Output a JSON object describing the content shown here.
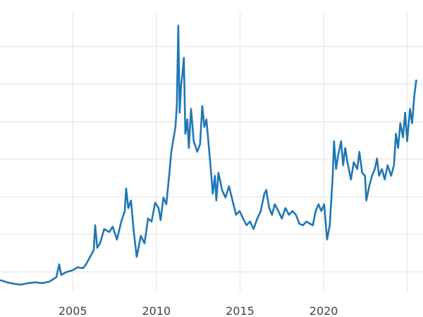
{
  "chart_data": {
    "type": "line",
    "title": "",
    "xlabel": "",
    "ylabel": "",
    "xlim": [
      2000.65,
      2025.6
    ],
    "ylim": [
      1.8,
      39.8
    ],
    "grid": true,
    "x_ticks": [
      2005,
      2010,
      2015,
      2020,
      2025
    ],
    "x_tick_labels": [
      "2005",
      "2010",
      "2015",
      "2020",
      ""
    ],
    "y_gridlines": [
      5,
      10,
      15,
      20,
      25,
      30,
      35
    ],
    "line_color": "#1f77b4",
    "series": [
      {
        "x": [
          2000.65,
          2001.07,
          2001.49,
          2001.91,
          2002.33,
          2002.76,
          2003.18,
          2003.6,
          2004.02,
          2004.19,
          2004.31,
          2004.65,
          2004.99,
          2005.28,
          2005.62,
          2005.79,
          2006.04,
          2006.25,
          2006.34,
          2006.46,
          2006.63,
          2006.88,
          2007.18,
          2007.39,
          2007.64,
          2007.9,
          2008.11,
          2008.19,
          2008.32,
          2008.48,
          2008.65,
          2008.82,
          2009.07,
          2009.29,
          2009.5,
          2009.71,
          2009.92,
          2010.13,
          2010.25,
          2010.42,
          2010.59,
          2010.76,
          2010.89,
          2011.01,
          2011.14,
          2011.22,
          2011.31,
          2011.39,
          2011.48,
          2011.56,
          2011.64,
          2011.73,
          2011.85,
          2011.94,
          2012.07,
          2012.23,
          2012.44,
          2012.61,
          2012.74,
          2012.87,
          2012.99,
          2013.12,
          2013.25,
          2013.37,
          2013.5,
          2013.58,
          2013.71,
          2013.92,
          2014.13,
          2014.34,
          2014.55,
          2014.76,
          2014.97,
          2015.18,
          2015.39,
          2015.6,
          2015.81,
          2016.03,
          2016.24,
          2016.45,
          2016.57,
          2016.74,
          2016.91,
          2017.08,
          2017.29,
          2017.5,
          2017.71,
          2017.92,
          2018.13,
          2018.34,
          2018.55,
          2018.76,
          2018.97,
          2019.18,
          2019.35,
          2019.52,
          2019.69,
          2019.86,
          2020.03,
          2020.2,
          2020.36,
          2020.53,
          2020.62,
          2020.74,
          2020.87,
          2021.04,
          2021.16,
          2021.29,
          2021.42,
          2021.63,
          2021.8,
          2022.01,
          2022.13,
          2022.3,
          2022.47,
          2022.55,
          2022.72,
          2022.89,
          2023.06,
          2023.19,
          2023.31,
          2023.48,
          2023.65,
          2023.82,
          2024.03,
          2024.2,
          2024.32,
          2024.45,
          2024.58,
          2024.74,
          2024.87,
          2024.99,
          2025.16,
          2025.29,
          2025.42,
          2025.54
        ],
        "y": [
          3.9,
          3.6,
          3.4,
          3.3,
          3.5,
          3.6,
          3.5,
          3.7,
          4.3,
          6.0,
          4.6,
          5.0,
          5.2,
          5.6,
          5.5,
          6.0,
          7.0,
          7.9,
          11.2,
          8.2,
          8.8,
          10.7,
          10.3,
          11.0,
          9.3,
          11.7,
          13.1,
          16.1,
          13.5,
          14.5,
          10.3,
          7.0,
          9.8,
          8.8,
          12.1,
          11.7,
          14.2,
          13.5,
          11.9,
          14.9,
          14.0,
          17.8,
          21.0,
          22.6,
          24.3,
          27.1,
          37.8,
          26.2,
          30.0,
          31.4,
          33.5,
          23.4,
          25.3,
          21.5,
          26.7,
          22.4,
          21.0,
          22.0,
          27.1,
          24.3,
          25.3,
          22.0,
          18.7,
          15.4,
          17.8,
          14.5,
          18.2,
          15.9,
          14.9,
          16.4,
          14.5,
          12.6,
          13.1,
          12.1,
          11.2,
          11.7,
          10.7,
          12.1,
          13.1,
          15.4,
          15.9,
          13.5,
          12.6,
          14.0,
          13.1,
          12.1,
          13.5,
          12.6,
          13.1,
          12.6,
          11.4,
          11.2,
          11.7,
          11.4,
          11.2,
          13.1,
          14.0,
          13.1,
          14.0,
          9.3,
          11.2,
          17.3,
          22.4,
          18.7,
          20.6,
          22.4,
          19.2,
          21.5,
          19.6,
          17.3,
          19.6,
          18.7,
          21.0,
          18.2,
          17.8,
          14.5,
          16.4,
          17.8,
          18.7,
          20.1,
          17.8,
          18.7,
          17.3,
          19.2,
          17.8,
          19.2,
          23.4,
          21.5,
          24.8,
          22.9,
          26.2,
          22.4,
          26.7,
          24.8,
          28.5,
          30.6
        ]
      }
    ]
  }
}
